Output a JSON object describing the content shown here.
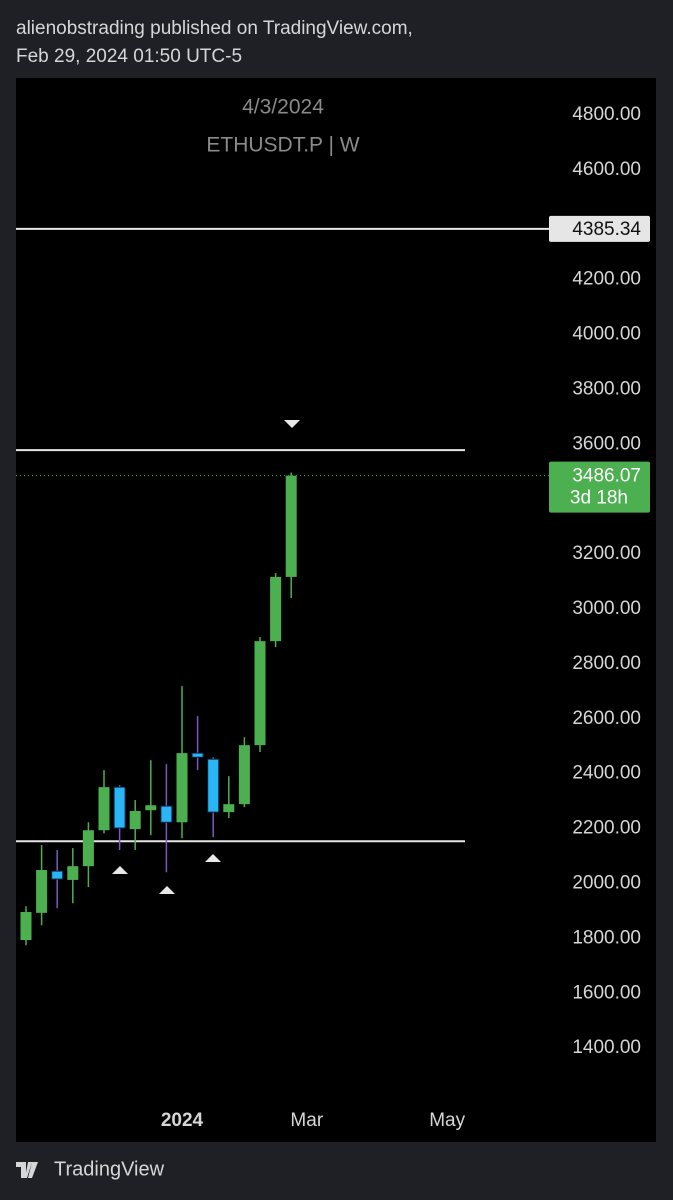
{
  "header": {
    "author_line": "alienobstrading published on TradingView.com,",
    "date_line": "Feb 29, 2024 01:50 UTC-5"
  },
  "footer": {
    "brand": "TradingView"
  },
  "chart_data": {
    "type": "candlestick",
    "watermark_date": "4/3/2024",
    "symbol": "ETHUSDT.P | W",
    "categories": [
      null,
      null,
      null,
      null,
      null,
      null,
      null,
      null,
      null,
      null,
      "2024",
      null,
      null,
      null,
      null,
      null,
      null,
      null,
      "Mar",
      null,
      null,
      null,
      null,
      null,
      null,
      null,
      null,
      "May"
    ],
    "open": [
      1794,
      1893,
      2045,
      2013,
      2063,
      2194,
      2351,
      2198,
      2267,
      2282,
      2223,
      2475,
      2453,
      2260,
      2289,
      2504,
      2883,
      3117,
      null,
      null,
      null,
      null,
      null,
      null,
      null,
      null,
      null,
      null
    ],
    "high": [
      1917,
      2140,
      2122,
      2129,
      2223,
      2413,
      2358,
      2304,
      2449,
      2435,
      2719,
      2610,
      2460,
      2391,
      2533,
      2898,
      3131,
      3497,
      null,
      null,
      null,
      null,
      null,
      null,
      null,
      null,
      null,
      null
    ],
    "low": [
      1775,
      1848,
      1910,
      1928,
      1987,
      2183,
      2122,
      2122,
      2176,
      2041,
      2165,
      2413,
      2169,
      2238,
      2278,
      2479,
      2861,
      3040,
      null,
      null,
      null,
      null,
      null,
      null,
      null,
      null,
      null,
      null
    ],
    "close": [
      1896,
      2049,
      2016,
      2063,
      2194,
      2351,
      2202,
      2264,
      2285,
      2223,
      2475,
      2460,
      2260,
      2289,
      2504,
      2883,
      3117,
      3486.07,
      null,
      null,
      null,
      null,
      null,
      null,
      null,
      null,
      null,
      null
    ],
    "up_color": "#4caf50",
    "down_color": "#29b6f6",
    "down_wick_color": "#7e57c2",
    "price_line": 4385.34,
    "levels": [
      3579,
      2154
    ],
    "countdown": "3d 18h",
    "ylim": [
      1058,
      4935
    ],
    "yticks": [
      {
        "value": 4800,
        "label": "4800.00"
      },
      {
        "value": 4600,
        "label": "4600.00"
      },
      {
        "value": 4200,
        "label": "4200.00"
      },
      {
        "value": 4000,
        "label": "4000.00"
      },
      {
        "value": 3800,
        "label": "3800.00"
      },
      {
        "value": 3600,
        "label": "3600.00"
      },
      {
        "value": 3200,
        "label": "3200.00"
      },
      {
        "value": 3000,
        "label": "3000.00"
      },
      {
        "value": 2800,
        "label": "2800.00"
      },
      {
        "value": 2600,
        "label": "2600.00"
      },
      {
        "value": 2400,
        "label": "2400.00"
      },
      {
        "value": 2200,
        "label": "2200.00"
      },
      {
        "value": 2000,
        "label": "2000.00"
      },
      {
        "value": 1800,
        "label": "1800.00"
      },
      {
        "value": 1600,
        "label": "1600.00"
      },
      {
        "value": 1400,
        "label": "1400.00"
      }
    ]
  }
}
